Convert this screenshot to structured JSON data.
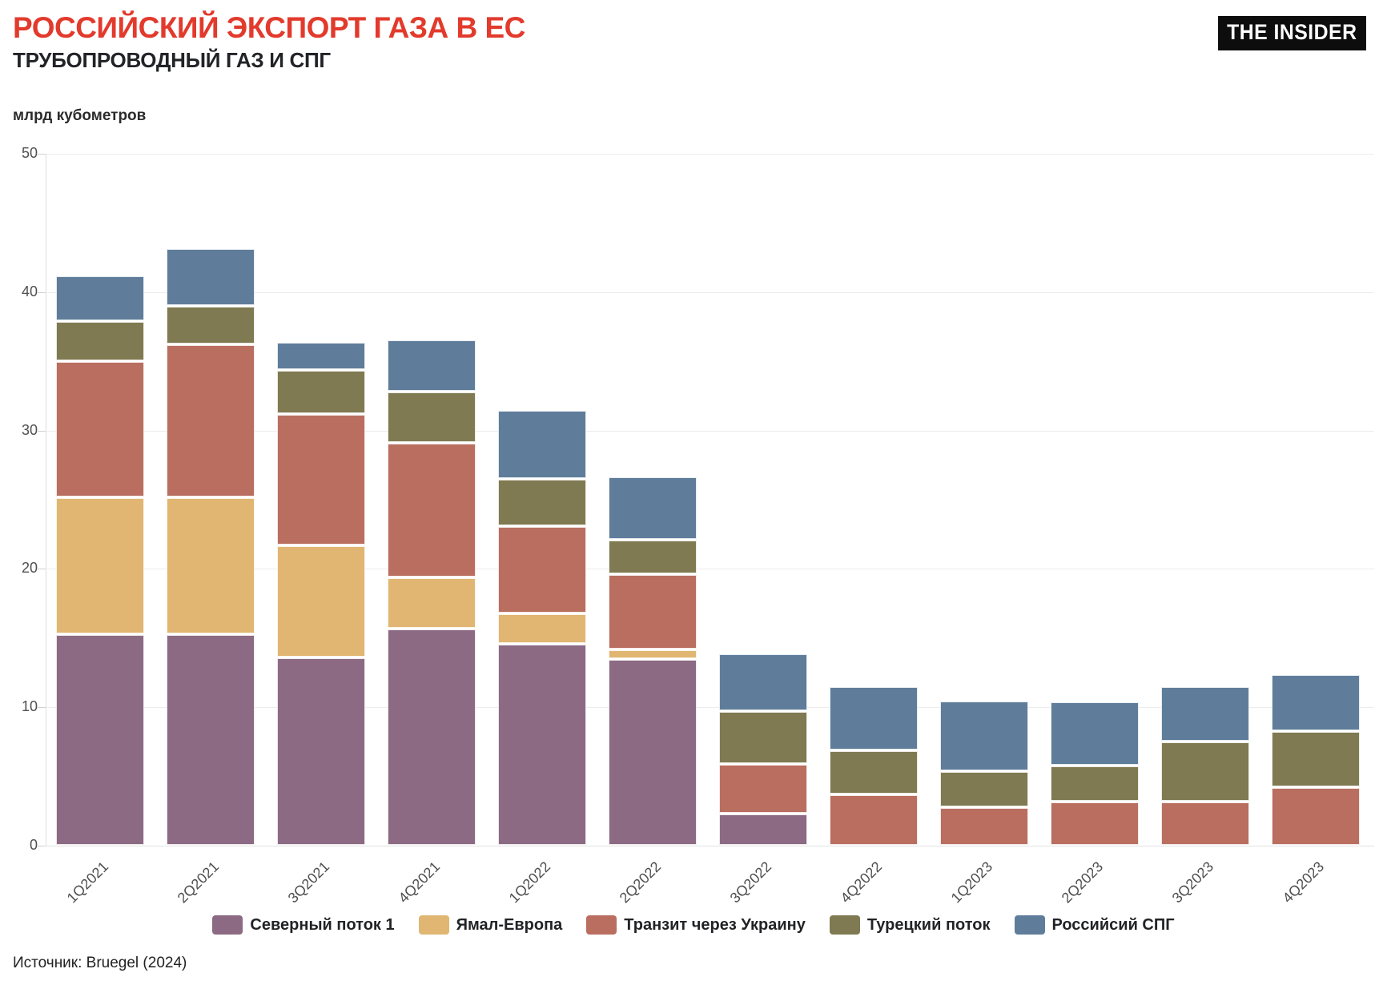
{
  "header": {
    "title": "РОССИЙСКИЙ ЭКСПОРТ ГАЗА В ЕС",
    "subtitle": "ТРУБОПРОВОДНЫЙ ГАЗ И СПГ",
    "logo": "THE INSIDER"
  },
  "unit_label": "млрд кубометров",
  "source": "Источник: Bruegel (2024)",
  "colors": {
    "title_accent": "#e23a2c",
    "logo_bg": "#0d0d0d",
    "gridline": "#ececec",
    "axis_text": "#4f4f4f"
  },
  "chart_data": {
    "type": "bar",
    "stacked": true,
    "title": "РОССИЙСКИЙ ЭКСПОРТ ГАЗА В ЕС",
    "subtitle": "ТРУБОПРОВОДНЫЙ ГАЗ И СПГ",
    "ylabel": "млрд кубометров",
    "xlabel": "",
    "ylim": [
      0,
      50
    ],
    "yticks": [
      0,
      10,
      20,
      30,
      40,
      50
    ],
    "grid": true,
    "legend_position": "bottom",
    "categories": [
      "1Q2021",
      "2Q2021",
      "3Q2021",
      "4Q2021",
      "1Q2022",
      "2Q2022",
      "3Q2022",
      "4Q2022",
      "1Q2023",
      "2Q2023",
      "3Q2023",
      "4Q2023"
    ],
    "series": [
      {
        "name": "Северный поток 1",
        "color": "#8c6a83",
        "values": [
          15.3,
          15.3,
          13.6,
          15.7,
          14.6,
          13.5,
          2.3,
          0,
          0,
          0,
          0,
          0
        ]
      },
      {
        "name": "Ямал-Европа",
        "color": "#e0b672",
        "values": [
          9.9,
          9.9,
          8.1,
          3.7,
          2.2,
          0.7,
          0,
          0,
          0,
          0,
          0,
          0
        ]
      },
      {
        "name": "Транзит через Украину",
        "color": "#b96e60",
        "values": [
          9.8,
          11.0,
          9.5,
          9.7,
          6.3,
          5.4,
          3.6,
          3.7,
          2.8,
          3.2,
          3.2,
          4.2
        ]
      },
      {
        "name": "Турецкий поток",
        "color": "#7f7a51",
        "values": [
          2.9,
          2.8,
          3.2,
          3.7,
          3.4,
          2.5,
          3.8,
          3.2,
          2.6,
          2.6,
          4.3,
          4.1
        ]
      },
      {
        "name": "Российсий СПГ",
        "color": "#5f7d9b",
        "values": [
          3.3,
          4.2,
          2.0,
          3.8,
          5.0,
          4.6,
          4.2,
          4.6,
          5.1,
          4.6,
          4.0,
          4.1
        ]
      }
    ]
  }
}
